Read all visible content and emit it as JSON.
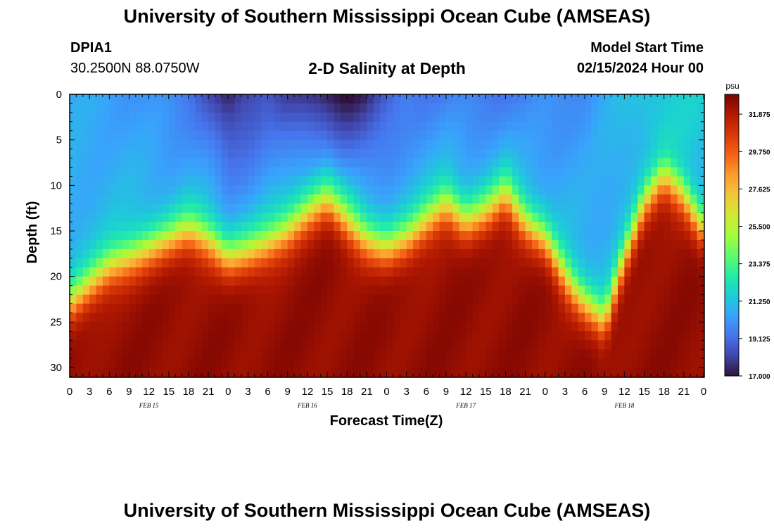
{
  "header": {
    "title": "University of Southern Mississippi Ocean Cube (AMSEAS)",
    "station": "DPIA1",
    "coords": "30.2500N  88.0750W",
    "subtitle": "2-D Salinity at Depth",
    "model_label": "Model Start Time",
    "model_time": "02/15/2024 Hour 00"
  },
  "footer": {
    "title": "University of Southern Mississippi Ocean Cube (AMSEAS)"
  },
  "chart_data": {
    "type": "heatmap",
    "title": "2-D Salinity at Depth",
    "xlabel": "Forecast Time(Z)",
    "ylabel": "Depth (ft)",
    "units": "psu",
    "x_hours_range": [
      0,
      96
    ],
    "y_depth_range": [
      0,
      31
    ],
    "y_ticks": [
      0,
      5,
      10,
      15,
      20,
      25,
      30
    ],
    "x_tick_labels": [
      "0",
      "3",
      "6",
      "9",
      "12",
      "15",
      "18",
      "21",
      "0",
      "3",
      "6",
      "9",
      "12",
      "15",
      "18",
      "21",
      "0",
      "3",
      "6",
      "9",
      "12",
      "15",
      "18",
      "21",
      "0",
      "3",
      "6",
      "9",
      "12",
      "15",
      "18",
      "21",
      "0"
    ],
    "date_labels": [
      {
        "text": "FEB 15",
        "hour": 12
      },
      {
        "text": "FEB 16",
        "hour": 36
      },
      {
        "text": "FEB 17",
        "hour": 60
      },
      {
        "text": "FEB 18",
        "hour": 84
      }
    ],
    "colorbar": {
      "min": 17.0,
      "max": 33.0,
      "ticks": [
        "31.875",
        "29.750",
        "27.625",
        "25.500",
        "23.375",
        "21.250",
        "19.125",
        "17.000"
      ],
      "colors": [
        "#30123b",
        "#4145ab",
        "#4675ed",
        "#39a2fc",
        "#1bcfd4",
        "#24eca6",
        "#61fc6c",
        "#a4fc3b",
        "#d1e834",
        "#f3c63a",
        "#fe9b2d",
        "#f36315",
        "#d93806",
        "#b11901",
        "#7a0402"
      ]
    },
    "interface_depth_ft": [
      [
        0,
        23
      ],
      [
        3,
        21
      ],
      [
        6,
        19
      ],
      [
        9,
        18
      ],
      [
        12,
        17
      ],
      [
        15,
        16
      ],
      [
        18,
        15
      ],
      [
        21,
        16
      ],
      [
        24,
        18
      ],
      [
        27,
        17.5
      ],
      [
        30,
        16.5
      ],
      [
        33,
        15
      ],
      [
        36,
        13
      ],
      [
        39,
        11.5
      ],
      [
        42,
        14
      ],
      [
        45,
        16
      ],
      [
        48,
        17
      ],
      [
        51,
        16
      ],
      [
        54,
        14
      ],
      [
        57,
        12
      ],
      [
        60,
        14
      ],
      [
        63,
        13
      ],
      [
        66,
        11
      ],
      [
        69,
        14
      ],
      [
        72,
        16
      ],
      [
        75,
        20
      ],
      [
        78,
        23
      ],
      [
        81,
        25
      ],
      [
        84,
        18
      ],
      [
        87,
        12
      ],
      [
        90,
        9
      ],
      [
        93,
        11
      ],
      [
        96,
        15
      ]
    ],
    "surface_salinity_psu": [
      [
        0,
        20.5
      ],
      [
        6,
        20.5
      ],
      [
        12,
        20
      ],
      [
        18,
        19.5
      ],
      [
        21,
        18.5
      ],
      [
        24,
        17.2
      ],
      [
        27,
        18
      ],
      [
        30,
        18.8
      ],
      [
        33,
        18
      ],
      [
        36,
        17.5
      ],
      [
        39,
        17.2
      ],
      [
        42,
        17
      ],
      [
        45,
        17.5
      ],
      [
        48,
        18.5
      ],
      [
        51,
        19.5
      ],
      [
        54,
        19.5
      ],
      [
        57,
        19.5
      ],
      [
        60,
        19.5
      ],
      [
        63,
        19.5
      ],
      [
        66,
        19.5
      ],
      [
        69,
        19.5
      ],
      [
        72,
        19.8
      ],
      [
        75,
        20
      ],
      [
        78,
        20
      ],
      [
        81,
        20.5
      ],
      [
        84,
        21
      ],
      [
        87,
        21.5
      ],
      [
        90,
        22.5
      ],
      [
        93,
        22
      ],
      [
        96,
        21.5
      ]
    ],
    "bottom_salinity_psu": 32.5
  }
}
